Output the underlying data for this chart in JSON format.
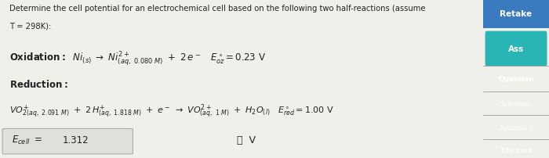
{
  "bg_color": "#f0f0eb",
  "main_bg": "#e8e8e2",
  "right_panel_color": "#5a6472",
  "right_panel_teal": "#2ab5b5",
  "right_panel_blue": "#3a7abf",
  "title_line1": "Determine the cell potential for an electrochemical cell based on the following two half-reactions (assume",
  "title_line2": "T = 298K):",
  "answer_value": "1.312",
  "input_bg": "#e0e0da",
  "text_color": "#222222"
}
